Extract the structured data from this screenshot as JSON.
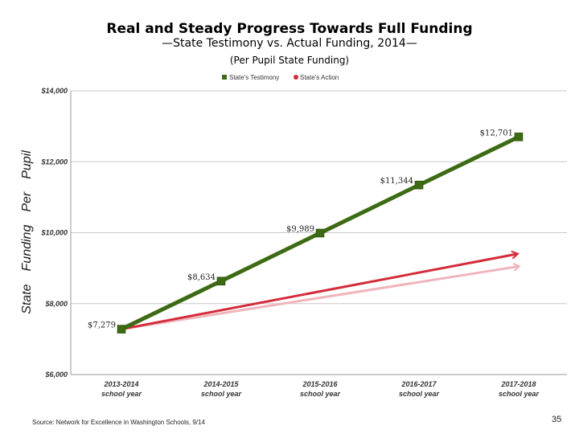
{
  "header": {
    "title": "Real and Steady Progress Towards Full Funding",
    "subtitle": "—State Testimony vs. Actual Funding, 2014—",
    "subtitle2": "(Per Pupil State Funding)"
  },
  "footer": {
    "source": "Source: Network for Excellence in Washington Schools, 9/14",
    "page_number": "35"
  },
  "chart_data": {
    "type": "line",
    "categories": [
      "2013-2014\nschool year",
      "2014-2015\nschool year",
      "2015-2016\nschool year",
      "2016-2017\nschool year",
      "2017-2018\nschool year"
    ],
    "ylabel": "State Funding Per Pupil",
    "ylim": [
      6000,
      14000
    ],
    "yticks": [
      "$6,000",
      "$8,000",
      "$10,000",
      "$12,000",
      "$14,000"
    ],
    "yticks_values": [
      6000,
      8000,
      10000,
      12000,
      14000
    ],
    "grid": true,
    "legend_position": "top-center",
    "series": [
      {
        "name": "State's Testimony",
        "color": "#3d6b14",
        "values": [
          7279,
          8634,
          9989,
          11344,
          12701
        ],
        "labels": [
          "$7,279",
          "$8,634",
          "$9,989",
          "$11,344",
          "$12,701"
        ]
      },
      {
        "name": "State's Action",
        "color": "#d42b3a",
        "values": [
          7279,
          null,
          null,
          null,
          9400
        ],
        "shadow_end_value": 9050
      }
    ]
  }
}
